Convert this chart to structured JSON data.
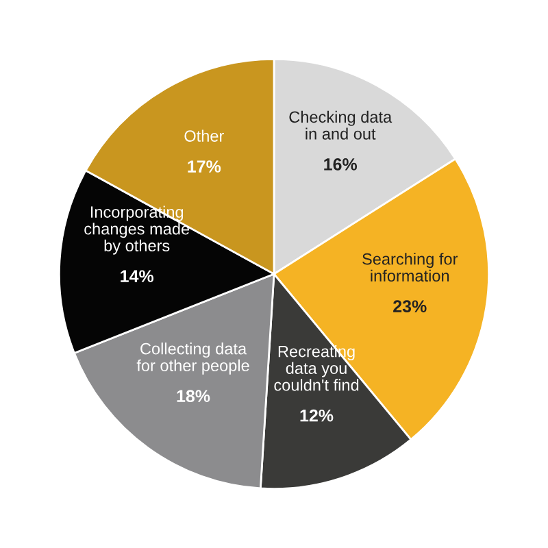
{
  "chart_data": {
    "type": "pie",
    "categories": [
      "Checking data\nin and out",
      "Searching for\ninformation",
      "Recreating\ndata you\ncouldn't find",
      "Collecting data\nfor other people",
      "Incorporating\nchanges made\nby others",
      "Other"
    ],
    "values": [
      16,
      23,
      12,
      18,
      14,
      17
    ],
    "value_labels": [
      "16%",
      "23%",
      "12%",
      "18%",
      "14%",
      "17%"
    ],
    "colors": [
      "#d9d9d9",
      "#f5b324",
      "#3a3a38",
      "#8c8c8e",
      "#050505",
      "#c9961f"
    ]
  }
}
